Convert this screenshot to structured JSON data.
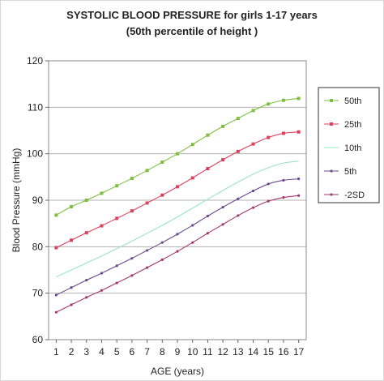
{
  "chart_data": {
    "type": "line",
    "title": "SYSTOLIC BLOOD PRESSURE for girls 1-17 years",
    "subtitle": "(50th percentile of height )",
    "xlabel": "AGE (years)",
    "ylabel": "Blood Pressure (mmHg)",
    "x": [
      1,
      2,
      3,
      4,
      5,
      6,
      7,
      8,
      9,
      10,
      11,
      12,
      13,
      14,
      15,
      16,
      17
    ],
    "x_tick_labels": [
      "1",
      "2",
      "3",
      "4",
      "5",
      "6",
      "7",
      "8",
      "9",
      "10",
      "11",
      "12",
      "13",
      "14",
      "15",
      "16",
      "17"
    ],
    "xlim": [
      0.5,
      17.5
    ],
    "ylim": [
      60,
      120
    ],
    "y_ticks": [
      60,
      70,
      80,
      90,
      100,
      110,
      120
    ],
    "grid": "horizontal",
    "legend_position": "right",
    "series": [
      {
        "name": "50th",
        "color": "#7fbf3f",
        "marker": "square",
        "values": [
          86.8,
          88.6,
          90.0,
          91.5,
          93.1,
          94.7,
          96.4,
          98.2,
          100.0,
          102.0,
          104.0,
          105.9,
          107.6,
          109.3,
          110.7,
          111.5,
          111.9
        ]
      },
      {
        "name": "25th",
        "color": "#d9425f",
        "marker": "square",
        "values": [
          79.8,
          81.4,
          83.0,
          84.5,
          86.1,
          87.7,
          89.4,
          91.1,
          92.9,
          94.8,
          96.8,
          98.7,
          100.5,
          102.1,
          103.5,
          104.4,
          104.7
        ]
      },
      {
        "name": "10th",
        "color": "#99e6c2",
        "marker": "none",
        "values": [
          73.5,
          75.0,
          76.5,
          78.0,
          79.6,
          81.2,
          82.9,
          84.6,
          86.4,
          88.3,
          90.2,
          92.1,
          93.9,
          95.6,
          97.0,
          98.0,
          98.4
        ]
      },
      {
        "name": "5th",
        "color": "#6b4a8c",
        "marker": "dot",
        "values": [
          69.6,
          71.2,
          72.8,
          74.3,
          75.9,
          77.5,
          79.2,
          80.9,
          82.7,
          84.6,
          86.6,
          88.5,
          90.3,
          92.0,
          93.5,
          94.3,
          94.6
        ]
      },
      {
        "name": "-2SD",
        "color": "#a0386e",
        "marker": "dot",
        "values": [
          65.9,
          67.5,
          69.1,
          70.6,
          72.2,
          73.8,
          75.5,
          77.2,
          79.0,
          80.9,
          82.9,
          84.8,
          86.7,
          88.4,
          89.8,
          90.6,
          91.0
        ]
      }
    ]
  }
}
